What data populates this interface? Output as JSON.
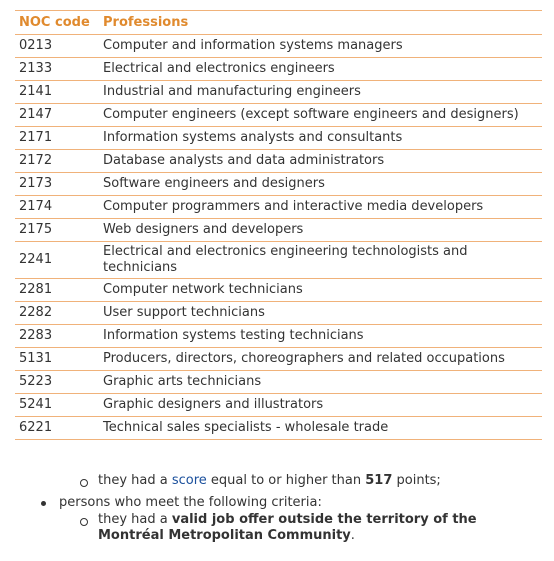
{
  "table": {
    "headers": [
      "NOC code",
      "Professions"
    ],
    "rows": [
      [
        "0213",
        "Computer and information systems managers"
      ],
      [
        "2133",
        "Electrical and electronics engineers"
      ],
      [
        "2141",
        "Industrial and manufacturing engineers"
      ],
      [
        "2147",
        "Computer engineers (except software engineers and designers)"
      ],
      [
        "2171",
        "Information systems analysts and consultants"
      ],
      [
        "2172",
        "Database analysts and data administrators"
      ],
      [
        "2173",
        "Software engineers and designers"
      ],
      [
        "2174",
        "Computer programmers and interactive media developers"
      ],
      [
        "2175",
        "Web designers and developers"
      ],
      [
        "2241",
        "Electrical and electronics engineering technologists and technicians"
      ],
      [
        "2281",
        "Computer network technicians"
      ],
      [
        "2282",
        "User support technicians"
      ],
      [
        "2283",
        "Information systems testing technicians"
      ],
      [
        "5131",
        "Producers, directors, choreographers and related occupations"
      ],
      [
        "5223",
        "Graphic arts technicians"
      ],
      [
        "5241",
        "Graphic designers and illustrators"
      ],
      [
        "6221",
        "Technical sales specialists - wholesale trade"
      ]
    ]
  },
  "list": {
    "score_item": [
      "they had a ",
      "score",
      " equal to or higher than ",
      "517",
      " points;"
    ],
    "criteria_item": "persons who meet the following criteria:",
    "job_item": [
      "they had a ",
      "valid job offer outside the territory of the Montréal Metropolitan Community",
      "."
    ]
  }
}
